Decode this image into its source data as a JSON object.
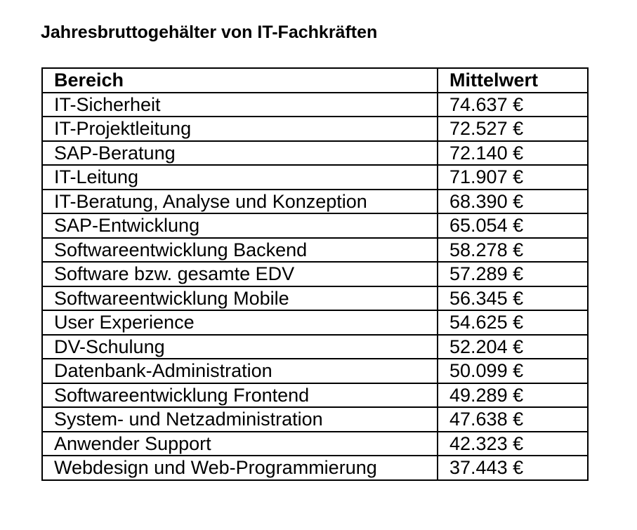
{
  "title": "Jahresbruttogehälter von IT-Fachkräften",
  "table": {
    "header": [
      "Bereich",
      "Mittelwert"
    ],
    "rows": [
      [
        "IT-Sicherheit",
        "74.637 €"
      ],
      [
        "IT-Projektleitung",
        "72.527 €"
      ],
      [
        "SAP-Beratung",
        "72.140 €"
      ],
      [
        "IT-Leitung",
        "71.907 €"
      ],
      [
        "IT-Beratung, Analyse und Konzeption",
        "68.390 €"
      ],
      [
        "SAP-Entwicklung",
        "65.054 €"
      ],
      [
        "Softwareentwicklung Backend",
        "58.278 €"
      ],
      [
        "Software bzw. gesamte EDV",
        "57.289 €"
      ],
      [
        "Softwareentwicklung Mobile",
        "56.345 €"
      ],
      [
        "User Experience",
        "54.625 €"
      ],
      [
        "DV-Schulung",
        "52.204 €"
      ],
      [
        "Datenbank-Administration",
        "50.099 €"
      ],
      [
        "Softwareentwicklung Frontend",
        "49.289 €"
      ],
      [
        "System- und Netzadministration",
        "47.638 €"
      ],
      [
        "Anwender Support",
        "42.323 €"
      ],
      [
        "Webdesign und Web-Programmierung",
        "37.443 €"
      ]
    ]
  }
}
